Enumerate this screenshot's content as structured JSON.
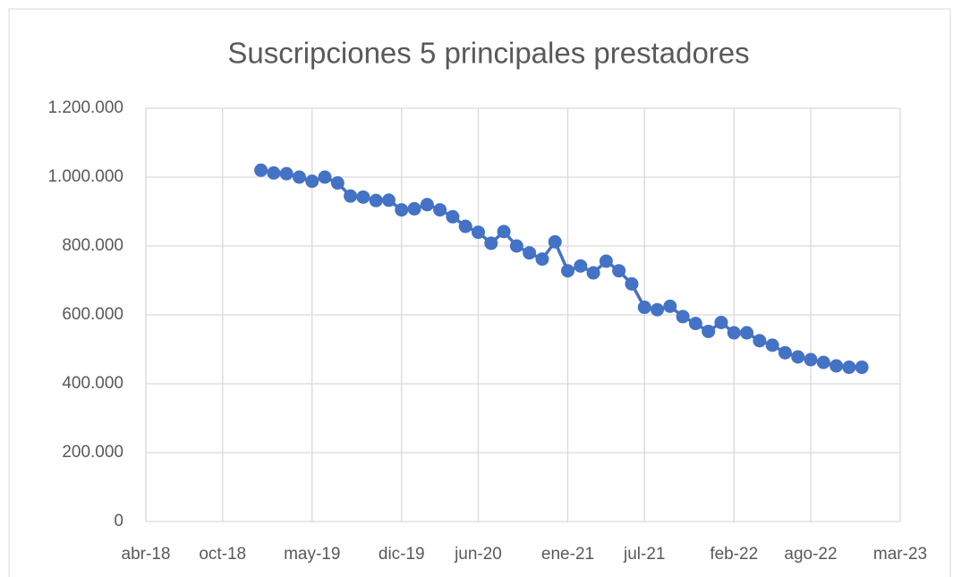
{
  "chart_data": {
    "type": "line",
    "title": "Suscripciones 5 principales prestadores",
    "x": [
      "2019-01",
      "2019-02",
      "2019-03",
      "2019-04",
      "2019-05",
      "2019-06",
      "2019-07",
      "2019-08",
      "2019-09",
      "2019-10",
      "2019-11",
      "2019-12",
      "2020-01",
      "2020-02",
      "2020-03",
      "2020-04",
      "2020-05",
      "2020-06",
      "2020-07",
      "2020-08",
      "2020-09",
      "2020-10",
      "2020-11",
      "2020-12",
      "2021-01",
      "2021-02",
      "2021-03",
      "2021-04",
      "2021-05",
      "2021-06",
      "2021-07",
      "2021-08",
      "2021-09",
      "2021-10",
      "2021-11",
      "2021-12",
      "2022-01",
      "2022-02",
      "2022-03",
      "2022-04",
      "2022-05",
      "2022-06",
      "2022-07",
      "2022-08",
      "2022-09",
      "2022-10",
      "2022-11",
      "2022-12"
    ],
    "values": [
      1020000,
      1012000,
      1010000,
      1000000,
      988000,
      1000000,
      983000,
      945000,
      942000,
      932000,
      933000,
      905000,
      908000,
      920000,
      905000,
      885000,
      857000,
      840000,
      808000,
      842000,
      800000,
      780000,
      762000,
      812000,
      728000,
      742000,
      722000,
      756000,
      728000,
      690000,
      622000,
      615000,
      625000,
      595000,
      575000,
      552000,
      578000,
      548000,
      548000,
      525000,
      512000,
      490000,
      478000,
      470000,
      462000,
      452000,
      448000,
      448000
    ],
    "color": "#4472c4",
    "xlim": [
      "2018-04",
      "2023-03"
    ],
    "xticks": [
      {
        "value": "2018-04",
        "label": "abr-18"
      },
      {
        "value": "2018-10",
        "label": "oct-18"
      },
      {
        "value": "2019-05",
        "label": "may-19"
      },
      {
        "value": "2019-12",
        "label": "dic-19"
      },
      {
        "value": "2020-06",
        "label": "jun-20"
      },
      {
        "value": "2021-01",
        "label": "ene-21"
      },
      {
        "value": "2021-07",
        "label": "jul-21"
      },
      {
        "value": "2022-02",
        "label": "feb-22"
      },
      {
        "value": "2022-08",
        "label": "ago-22"
      },
      {
        "value": "2023-03",
        "label": "mar-23"
      }
    ],
    "ylim": [
      0,
      1200000
    ],
    "yticks": [
      0,
      {
        "value": 200000,
        "label": "200.000"
      },
      {
        "value": 400000,
        "label": "400.000"
      },
      {
        "value": 600000,
        "label": "600.000"
      },
      {
        "value": 800000,
        "label": "800.000"
      },
      {
        "value": 1000000,
        "label": "1.000.000"
      },
      {
        "value": 1200000,
        "label": "1.200.000"
      }
    ],
    "grid": true
  }
}
